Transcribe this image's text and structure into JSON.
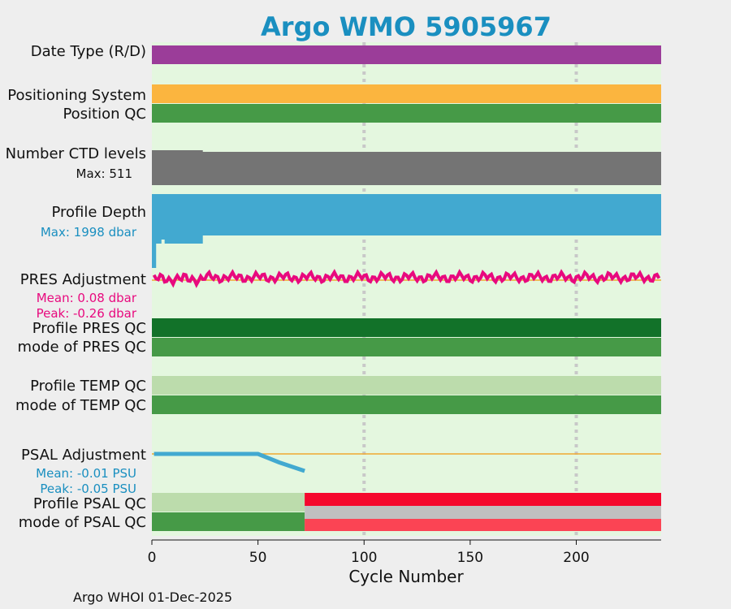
{
  "chart_data": {
    "type": "timeline",
    "title": "Argo WMO 5905967",
    "xlabel": "Cycle Number",
    "xlim": [
      0,
      240
    ],
    "xticks": [
      0,
      50,
      100,
      150,
      200
    ],
    "grid_x": [
      100,
      200
    ],
    "footer": "Argo WHOI 01-Dec-2025",
    "colors": {
      "title": "#1a8fc0",
      "background": "#e4f7df",
      "date_type": "#9b3d99",
      "positioning": "#fbb53f",
      "qc_good": "#469a47",
      "qc_dark": "#127229",
      "qc_light": "#bcdcac",
      "ctd": "#747474",
      "depth": "#42a9d0",
      "pres": "#e8097e",
      "psal_line": "#42a9d0",
      "zero_line": "#f0a830",
      "qc_bad": "#f5082d",
      "qc_bad_light": "#fb4454",
      "qc_gray": "#c0c0c0",
      "blue_text": "#1a8fc0",
      "magenta_text": "#e8097e"
    },
    "rows": {
      "date_type": {
        "label": "Date Type (R/D)"
      },
      "positioning": {
        "label": "Positioning System"
      },
      "position_qc": {
        "label": "Position QC"
      },
      "ctd": {
        "label": "Number CTD levels",
        "note": "Max: 511",
        "reduced_until": 24
      },
      "depth": {
        "label": "Profile Depth",
        "note": "Max: 1998 dbar",
        "shallow_until": 24
      },
      "pres_adj": {
        "label": "PRES Adjustment",
        "mean": "Mean: 0.08 dbar",
        "peak": "Peak: -0.26 dbar",
        "ylim": [
          -0.35,
          0.35
        ]
      },
      "pres_qc": {
        "label": "Profile PRES QC"
      },
      "pres_mode": {
        "label": "mode of PRES QC"
      },
      "temp_qc": {
        "label": "Profile TEMP QC"
      },
      "temp_mode": {
        "label": "mode of TEMP QC"
      },
      "psal_adj": {
        "label": "PSAL Adjustment",
        "mean": "Mean: -0.01 PSU",
        "peak": "Peak: -0.05 PSU",
        "x": [
          1,
          50,
          60,
          72
        ],
        "y": [
          0.0,
          0.0,
          -0.025,
          -0.05
        ],
        "ylim": [
          -0.05,
          0.0
        ]
      },
      "psal_qc": {
        "label": "Profile PSAL QC",
        "change_cycle": 72
      },
      "psal_mode": {
        "label": "mode of PSAL QC",
        "change_cycle": 72
      }
    }
  }
}
